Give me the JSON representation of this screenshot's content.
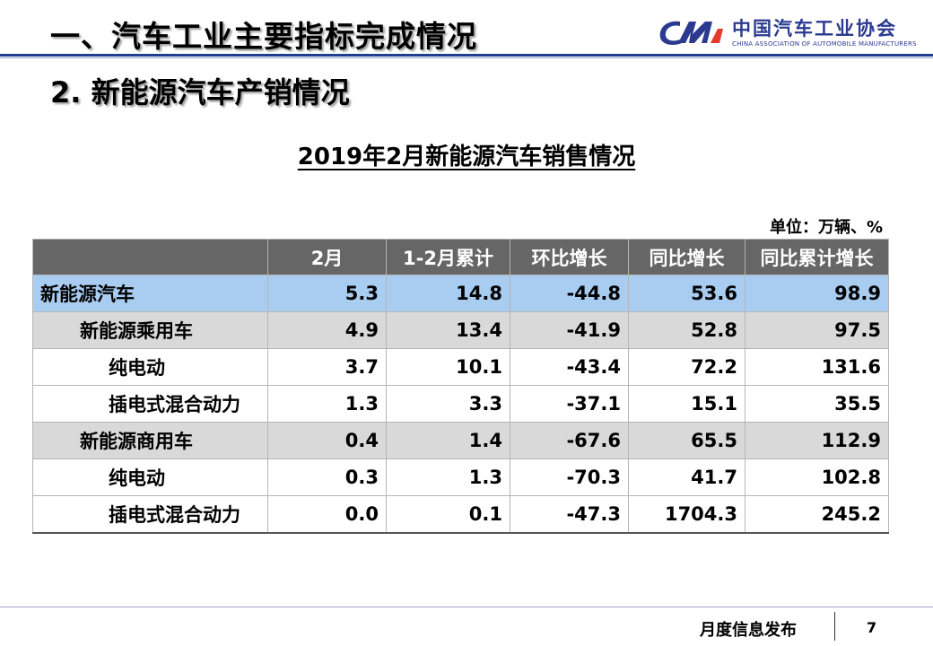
{
  "header": {
    "section_title": "一、汽车工业主要指标完成情况",
    "logo_cn": "中国汽车工业协会",
    "logo_en": "CHINA ASSOCIATION OF AUTOMOBILE MANUFACTURERS"
  },
  "subtitle": "2. 新能源汽车产销情况",
  "table": {
    "title": "2019年2月新能源汽车销售情况",
    "unit": "单位：万辆、%",
    "columns": [
      "",
      "2月",
      "1-2月累计",
      "环比增长",
      "同比增长",
      "同比累计增长"
    ],
    "rows": [
      {
        "name": "新能源汽车",
        "level": 0,
        "values": [
          "5.3",
          "14.8",
          "-44.8",
          "53.6",
          "98.9"
        ]
      },
      {
        "name": "新能源乘用车",
        "level": 1,
        "values": [
          "4.9",
          "13.4",
          "-41.9",
          "52.8",
          "97.5"
        ]
      },
      {
        "name": "纯电动",
        "level": 2,
        "values": [
          "3.7",
          "10.1",
          "-43.4",
          "72.2",
          "131.6"
        ]
      },
      {
        "name": "插电式混合动力",
        "level": 2,
        "values": [
          "1.3",
          "3.3",
          "-37.1",
          "15.1",
          "35.5"
        ]
      },
      {
        "name": "新能源商用车",
        "level": 1,
        "values": [
          "0.4",
          "1.4",
          "-67.6",
          "65.5",
          "112.9"
        ]
      },
      {
        "name": "纯电动",
        "level": 2,
        "values": [
          "0.3",
          "1.3",
          "-70.3",
          "41.7",
          "102.8"
        ]
      },
      {
        "name": "插电式混合动力",
        "level": 2,
        "values": [
          "0.0",
          "0.1",
          "-47.3",
          "1704.3",
          "245.2"
        ]
      }
    ]
  },
  "footer": {
    "label": "月度信息发布",
    "page": "7"
  },
  "colors": {
    "header_row": "#666666",
    "total_row": "#a9cdf1",
    "group_row": "#d9d9d9",
    "brand_blue": "#2b3a8f"
  }
}
